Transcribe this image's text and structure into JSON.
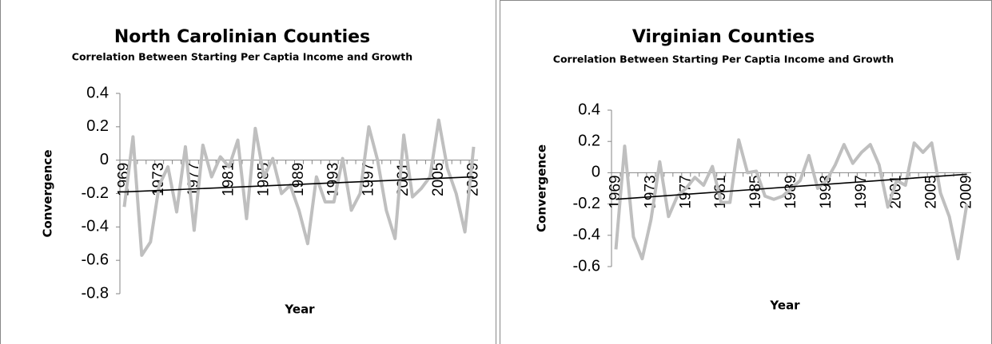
{
  "chart_data": [
    {
      "type": "line",
      "title": "North Carolinian Counties",
      "subtitle": "Correlation Between Starting Per Captia Income and Growth",
      "ylabel": "Convergence",
      "xlabel": "Year",
      "categories": [
        "1969",
        null,
        null,
        null,
        "1973",
        null,
        null,
        null,
        "1977",
        null,
        null,
        null,
        "1981",
        null,
        null,
        null,
        "1985",
        null,
        null,
        null,
        "1989",
        null,
        null,
        null,
        "1993",
        null,
        null,
        null,
        "1997",
        null,
        null,
        null,
        "2001",
        null,
        null,
        null,
        "2005",
        null,
        null,
        null,
        "2009"
      ],
      "color": "#bfbfbf",
      "values": [
        -0.28,
        0.14,
        -0.57,
        -0.49,
        -0.15,
        -0.04,
        -0.31,
        0.08,
        -0.42,
        0.09,
        -0.1,
        0.02,
        -0.04,
        0.12,
        -0.35,
        0.19,
        -0.1,
        0.01,
        -0.2,
        -0.15,
        -0.3,
        -0.5,
        -0.1,
        -0.25,
        -0.25,
        0.01,
        -0.3,
        -0.2,
        0.2,
        0.0,
        -0.3,
        -0.47,
        0.15,
        -0.22,
        -0.17,
        -0.1,
        0.24,
        -0.05,
        -0.2,
        -0.43,
        0.08
      ],
      "trendline": {
        "color": "#000000",
        "start": -0.19,
        "end": -0.1
      },
      "ylim": [
        -0.8,
        0.4
      ],
      "yticks": [
        -0.8,
        -0.6,
        -0.4,
        -0.2,
        0,
        0.2,
        0.4
      ]
    },
    {
      "type": "line",
      "title": "Virginian Counties",
      "subtitle": "Correlation Between Starting Per Captia Income and Growth",
      "ylabel": "Convergence",
      "xlabel": "Year",
      "categories": [
        "1969",
        null,
        null,
        null,
        "1973",
        null,
        null,
        null,
        "1977",
        null,
        null,
        null,
        "1981",
        null,
        null,
        null,
        "1985",
        null,
        null,
        null,
        "1989",
        null,
        null,
        null,
        "1993",
        null,
        null,
        null,
        "1997",
        null,
        null,
        null,
        "2001",
        null,
        null,
        null,
        "2005",
        null,
        null,
        null,
        "2009"
      ],
      "color": "#bfbfbf",
      "values": [
        -0.49,
        0.17,
        -0.41,
        -0.55,
        -0.3,
        0.07,
        -0.28,
        -0.15,
        -0.1,
        -0.03,
        -0.08,
        0.04,
        -0.19,
        -0.19,
        0.21,
        0.0,
        0.01,
        -0.15,
        -0.17,
        -0.15,
        -0.1,
        -0.05,
        0.11,
        -0.1,
        -0.05,
        0.05,
        0.18,
        0.06,
        0.13,
        0.18,
        0.05,
        -0.22,
        -0.05,
        -0.08,
        0.19,
        0.13,
        0.19,
        -0.13,
        -0.28,
        -0.55,
        -0.2
      ],
      "trendline": {
        "color": "#000000",
        "start": -0.17,
        "end": -0.01
      },
      "ylim": [
        -0.6,
        0.4
      ],
      "yticks": [
        -0.6,
        -0.4,
        -0.2,
        0,
        0.2,
        0.4
      ]
    }
  ]
}
